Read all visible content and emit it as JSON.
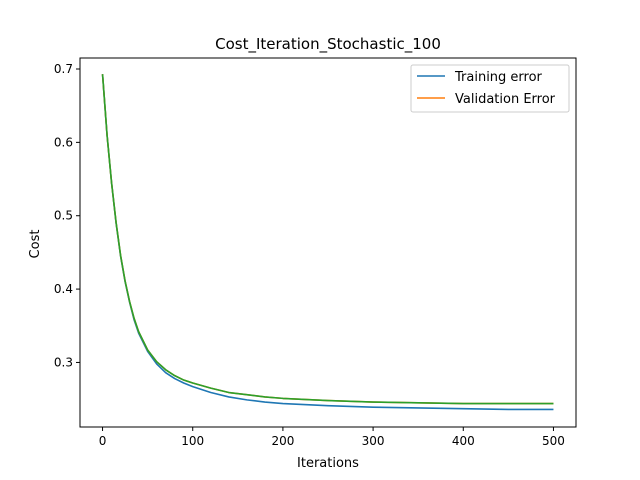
{
  "chart_data": {
    "type": "line",
    "title": "Cost_Iteration_Stochastic_100",
    "xlabel": "Iterations",
    "ylabel": "Cost",
    "xlim": [
      -25,
      525
    ],
    "ylim": [
      0.212,
      0.715
    ],
    "x_ticks": [
      0,
      100,
      200,
      300,
      400,
      500
    ],
    "y_ticks": [
      0.3,
      0.4,
      0.5,
      0.6,
      0.7
    ],
    "x_tick_labels": [
      "0",
      "100",
      "200",
      "300",
      "400",
      "500"
    ],
    "y_tick_labels": [
      "0.3",
      "0.4",
      "0.5",
      "0.6",
      "0.7"
    ],
    "grid": false,
    "legend": {
      "position": "top-right",
      "entries": [
        "Training error",
        "Validation Error"
      ]
    },
    "x": [
      0,
      5,
      10,
      15,
      20,
      25,
      30,
      35,
      40,
      50,
      60,
      70,
      80,
      90,
      100,
      120,
      140,
      160,
      180,
      200,
      250,
      300,
      350,
      400,
      450,
      500
    ],
    "series": [
      {
        "name": "Training error",
        "color": "#1f77b4",
        "values": [
          0.693,
          0.61,
          0.545,
          0.49,
          0.445,
          0.41,
          0.382,
          0.358,
          0.34,
          0.315,
          0.298,
          0.286,
          0.278,
          0.272,
          0.267,
          0.259,
          0.253,
          0.249,
          0.246,
          0.244,
          0.241,
          0.239,
          0.238,
          0.237,
          0.236,
          0.236
        ]
      },
      {
        "name": "Validation Error",
        "color": "#ff7f0e",
        "values": [
          0.693,
          0.61,
          0.545,
          0.491,
          0.446,
          0.411,
          0.383,
          0.36,
          0.342,
          0.317,
          0.301,
          0.29,
          0.282,
          0.276,
          0.272,
          0.265,
          0.259,
          0.256,
          0.253,
          0.251,
          0.248,
          0.246,
          0.245,
          0.244,
          0.244,
          0.244
        ]
      },
      {
        "color": "#2ca02c",
        "values": [
          0.693,
          0.61,
          0.545,
          0.491,
          0.446,
          0.411,
          0.383,
          0.36,
          0.342,
          0.317,
          0.301,
          0.29,
          0.282,
          0.276,
          0.272,
          0.265,
          0.259,
          0.256,
          0.253,
          0.251,
          0.248,
          0.246,
          0.245,
          0.244,
          0.244,
          0.244
        ]
      }
    ]
  }
}
